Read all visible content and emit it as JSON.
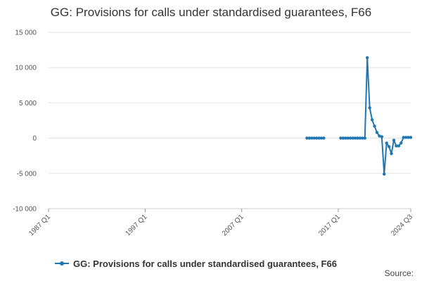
{
  "title": "GG: Provisions for calls under standardised guarantees, F66",
  "source_label": "Source:",
  "chart_data": {
    "type": "line",
    "title": "GG: Provisions for calls under standardised guarantees, F66",
    "xlabel": "",
    "ylabel": "",
    "ylim": [
      -10000,
      15000
    ],
    "y_ticks": [
      15000,
      10000,
      5000,
      0,
      -5000,
      -10000
    ],
    "y_tick_labels": [
      "15 000",
      "10 000",
      "5 000",
      "0",
      "-5 000",
      "-10 000"
    ],
    "x_ticks": [
      "1987 Q1",
      "1997 Q1",
      "2007 Q1",
      "2017 Q1",
      "2024 Q3"
    ],
    "x_range": [
      "1987 Q1",
      "2024 Q3"
    ],
    "grid": true,
    "legend": "bottom",
    "color": "#1f77b4",
    "series": [
      {
        "name": "GG: Provisions for calls under standardised guarantees, F66",
        "segments": [
          [
            [
              "2013 Q4",
              0
            ],
            [
              "2014 Q1",
              0
            ],
            [
              "2014 Q2",
              0
            ],
            [
              "2014 Q3",
              0
            ],
            [
              "2014 Q4",
              0
            ],
            [
              "2015 Q1",
              0
            ],
            [
              "2015 Q2",
              0
            ],
            [
              "2015 Q3",
              0
            ]
          ],
          [
            [
              "2017 Q2",
              0
            ],
            [
              "2017 Q3",
              0
            ],
            [
              "2017 Q4",
              0
            ],
            [
              "2018 Q1",
              0
            ],
            [
              "2018 Q2",
              0
            ],
            [
              "2018 Q3",
              0
            ],
            [
              "2018 Q4",
              0
            ],
            [
              "2019 Q1",
              0
            ],
            [
              "2019 Q2",
              0
            ],
            [
              "2019 Q3",
              0
            ],
            [
              "2019 Q4",
              0
            ],
            [
              "2020 Q1",
              11400
            ],
            [
              "2020 Q2",
              4300
            ],
            [
              "2020 Q3",
              2600
            ],
            [
              "2020 Q4",
              1700
            ],
            [
              "2021 Q1",
              800
            ],
            [
              "2021 Q2",
              300
            ],
            [
              "2021 Q3",
              200
            ],
            [
              "2021 Q4",
              -5100
            ],
            [
              "2022 Q1",
              -700
            ],
            [
              "2022 Q2",
              -1200
            ],
            [
              "2022 Q3",
              -2200
            ],
            [
              "2022 Q4",
              -300
            ],
            [
              "2023 Q1",
              -1100
            ],
            [
              "2023 Q2",
              -1100
            ],
            [
              "2023 Q3",
              -700
            ],
            [
              "2023 Q4",
              100
            ],
            [
              "2024 Q1",
              100
            ],
            [
              "2024 Q2",
              100
            ],
            [
              "2024 Q3",
              100
            ]
          ]
        ]
      }
    ]
  }
}
